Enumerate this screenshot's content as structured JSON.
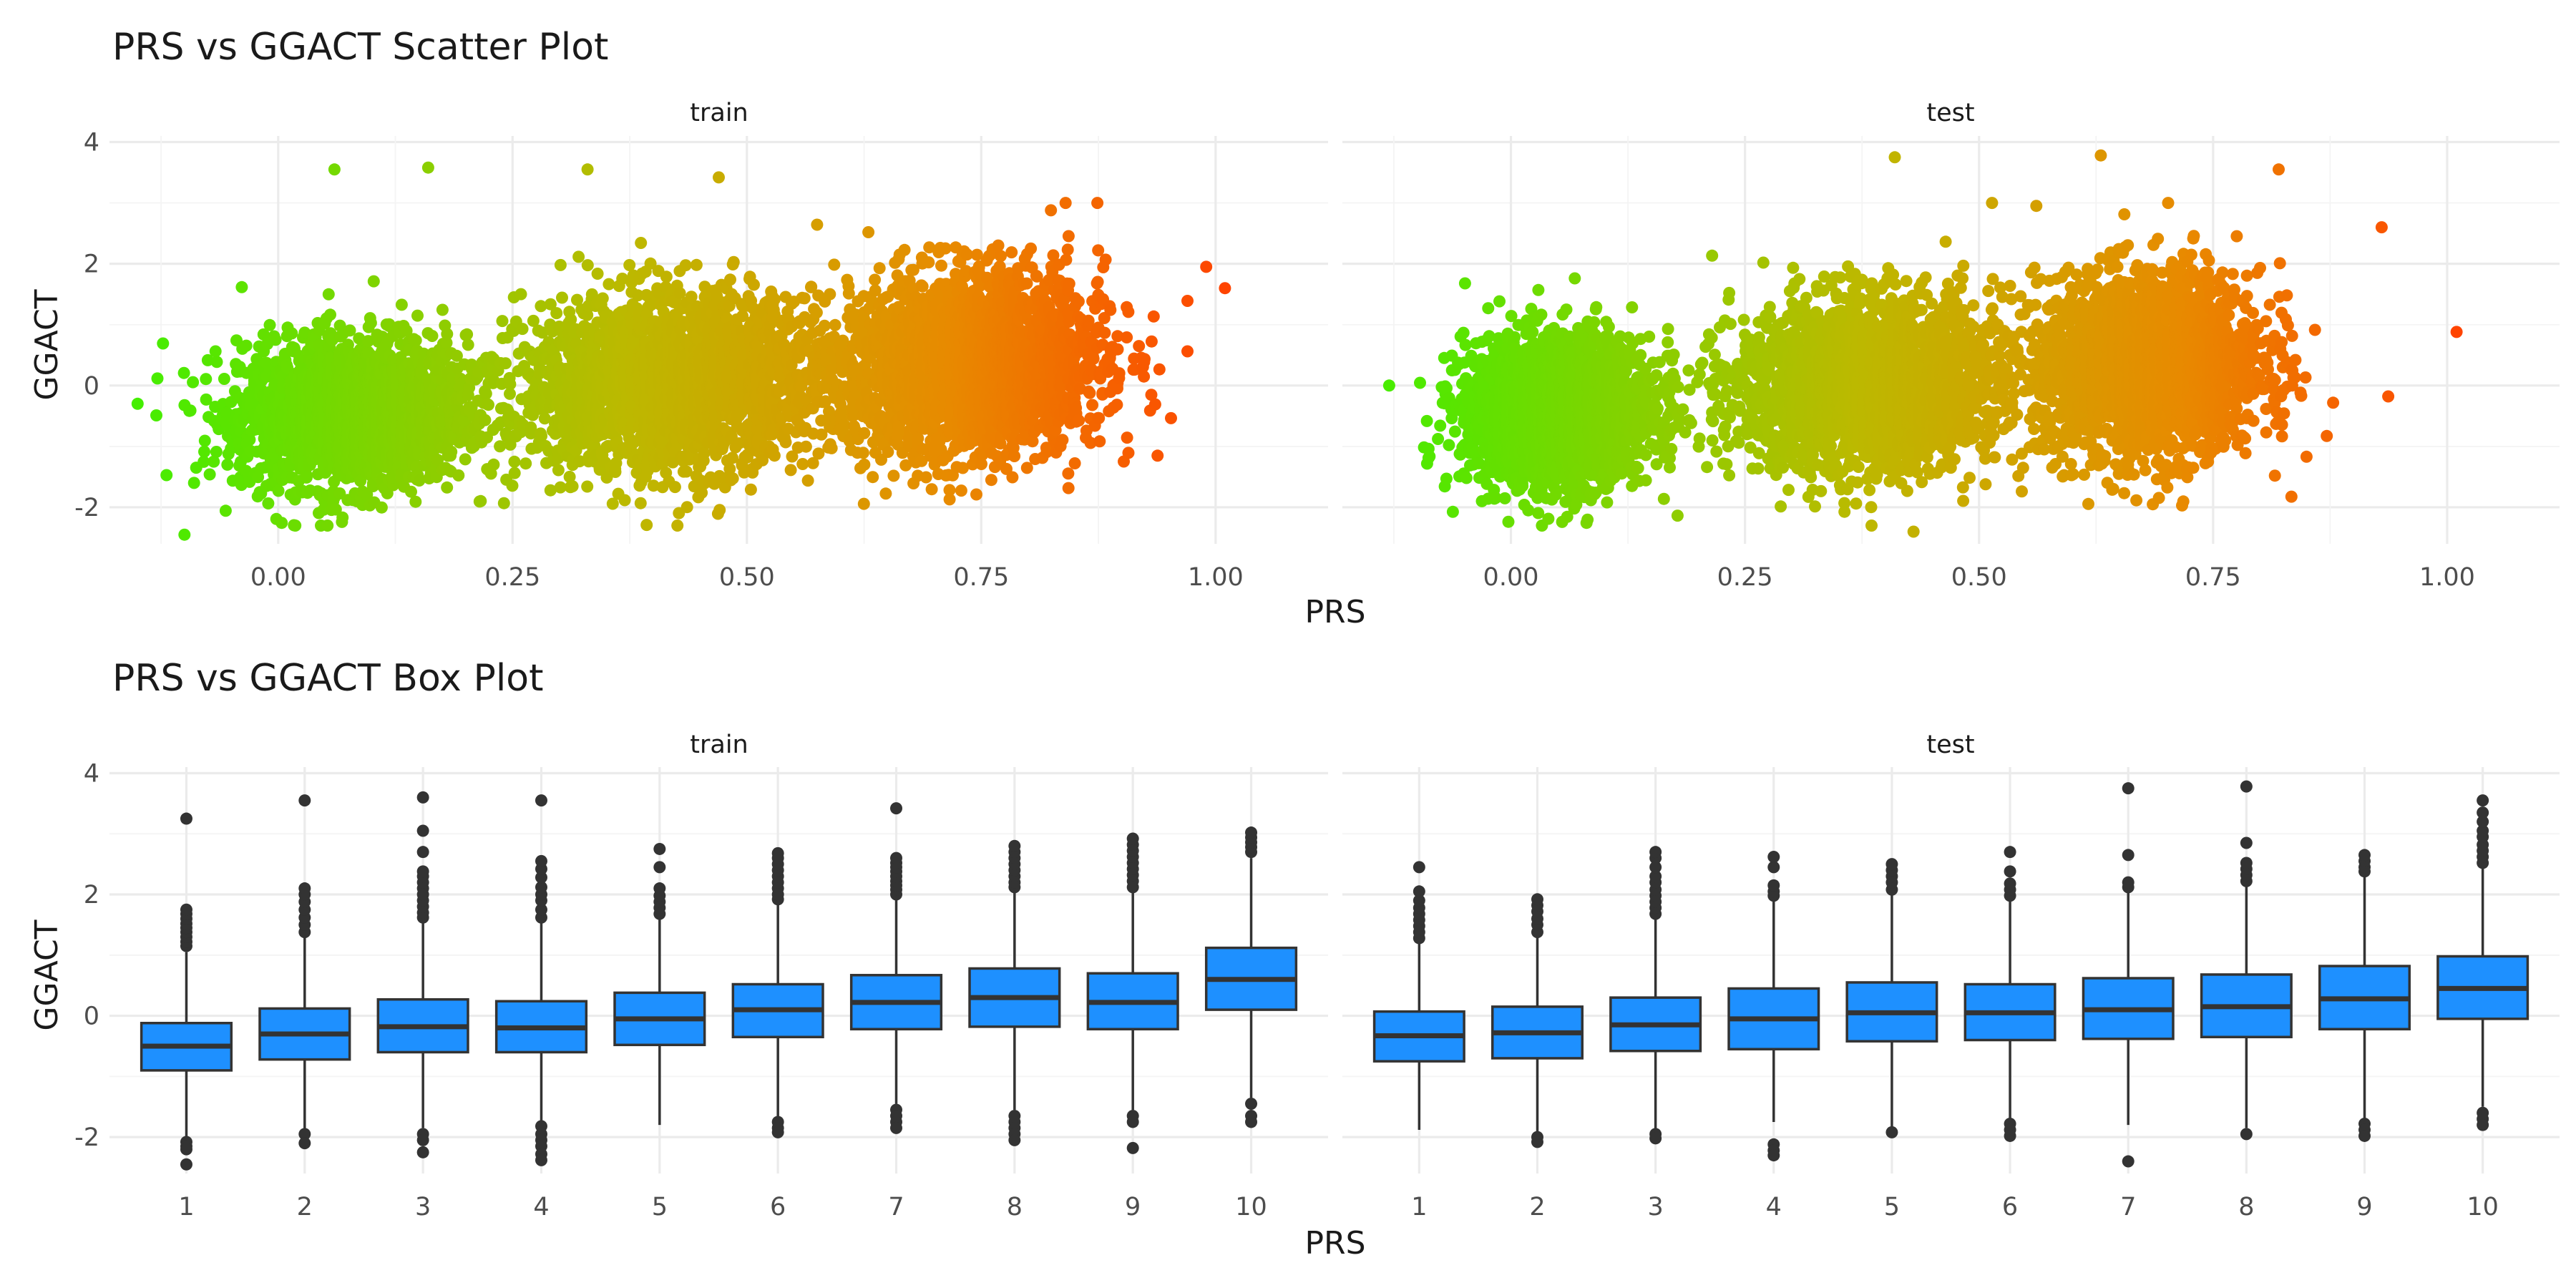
{
  "scatter_title": "PRS vs GGACT Scatter Plot",
  "box_title": "PRS vs GGACT Box Plot",
  "facets": [
    "train",
    "test"
  ],
  "xlabel": "PRS",
  "ylabel": "GGACT",
  "scatter_xticks": [
    "0.00",
    "0.25",
    "0.50",
    "0.75",
    "1.00"
  ],
  "scatter_yticks": [
    "-2",
    "0",
    "2",
    "4"
  ],
  "box_xticks": [
    "1",
    "2",
    "3",
    "4",
    "5",
    "6",
    "7",
    "8",
    "9",
    "10"
  ],
  "box_yticks": [
    "-2",
    "0",
    "2",
    "4"
  ],
  "colors": {
    "low": "#44ee00",
    "high": "#ff4400",
    "box_fill": "#1e90ff",
    "box_line": "#333333"
  },
  "chart_data": [
    {
      "type": "scatter",
      "title": "PRS vs GGACT Scatter Plot",
      "xlabel": "PRS",
      "ylabel": "GGACT",
      "xlim": [
        -0.18,
        1.12
      ],
      "ylim": [
        -2.6,
        4.1
      ],
      "color_by": "PRS",
      "facets": [
        {
          "name": "train",
          "clusters": [
            {
              "x_center": 0.08,
              "x_sd": 0.06,
              "y_mean": -0.45,
              "y_sd": 0.6
            },
            {
              "x_center": 0.42,
              "x_sd": 0.08,
              "y_mean": 0.05,
              "y_sd": 0.7
            },
            {
              "x_center": 0.74,
              "x_sd": 0.07,
              "y_mean": 0.35,
              "y_sd": 0.75
            }
          ],
          "x_range": [
            -0.15,
            1.01
          ],
          "y_range": [
            -2.45,
            3.6
          ],
          "notable_points": [
            [
              -0.15,
              -0.3
            ],
            [
              1.01,
              1.6
            ],
            [
              0.06,
              3.55
            ],
            [
              0.16,
              3.58
            ],
            [
              0.33,
              3.55
            ],
            [
              0.47,
              3.42
            ],
            [
              -0.1,
              -2.45
            ],
            [
              0.84,
              3.0
            ],
            [
              0.99,
              1.95
            ]
          ]
        },
        {
          "name": "test",
          "clusters": [
            {
              "x_center": 0.05,
              "x_sd": 0.05,
              "y_mean": -0.4,
              "y_sd": 0.6
            },
            {
              "x_center": 0.38,
              "x_sd": 0.07,
              "y_mean": 0.0,
              "y_sd": 0.7
            },
            {
              "x_center": 0.68,
              "x_sd": 0.06,
              "y_mean": 0.35,
              "y_sd": 0.75
            }
          ],
          "x_range": [
            -0.13,
            1.01
          ],
          "y_range": [
            -2.45,
            3.78
          ],
          "notable_points": [
            [
              -0.13,
              0.0
            ],
            [
              1.01,
              0.88
            ],
            [
              0.41,
              3.75
            ],
            [
              0.63,
              3.78
            ],
            [
              0.93,
              2.6
            ],
            [
              0.43,
              -2.4
            ],
            [
              0.82,
              3.55
            ]
          ]
        }
      ]
    },
    {
      "type": "box",
      "title": "PRS vs GGACT Box Plot",
      "xlabel": "PRS",
      "ylabel": "GGACT",
      "categories": [
        "1",
        "2",
        "3",
        "4",
        "5",
        "6",
        "7",
        "8",
        "9",
        "10"
      ],
      "ylim": [
        -2.6,
        4.1
      ],
      "facets": [
        {
          "name": "train",
          "boxes": [
            {
              "q1": -0.9,
              "median": -0.5,
              "q3": -0.12,
              "whisker_low": -2.05,
              "whisker_high": 1.05,
              "outliers": [
                1.15,
                1.22,
                1.3,
                1.38,
                1.45,
                1.52,
                1.6,
                1.68,
                1.75,
                -2.08,
                -2.15,
                -2.2,
                -2.45,
                3.25
              ]
            },
            {
              "q1": -0.72,
              "median": -0.3,
              "q3": 0.12,
              "whisker_low": -1.9,
              "whisker_high": 1.3,
              "outliers": [
                1.38,
                1.5,
                1.62,
                1.75,
                1.88,
                2.0,
                2.1,
                -1.95,
                -2.1,
                3.55
              ]
            },
            {
              "q1": -0.6,
              "median": -0.18,
              "q3": 0.27,
              "whisker_low": -1.85,
              "whisker_high": 1.55,
              "outliers": [
                1.62,
                1.7,
                1.8,
                1.9,
                2.0,
                2.1,
                2.2,
                2.3,
                2.38,
                2.7,
                3.05,
                3.6,
                -1.95,
                -2.05,
                -2.25
              ]
            },
            {
              "q1": -0.6,
              "median": -0.2,
              "q3": 0.24,
              "whisker_low": -1.75,
              "whisker_high": 1.55,
              "outliers": [
                1.62,
                1.75,
                1.9,
                2.0,
                2.12,
                2.28,
                2.42,
                2.55,
                3.55,
                -1.82,
                -1.95,
                -2.05,
                -2.15,
                -2.28,
                -2.38
              ]
            },
            {
              "q1": -0.48,
              "median": -0.05,
              "q3": 0.38,
              "whisker_low": -1.8,
              "whisker_high": 1.6,
              "outliers": [
                1.68,
                1.78,
                1.88,
                1.98,
                2.1,
                2.45,
                2.75
              ]
            },
            {
              "q1": -0.35,
              "median": 0.1,
              "q3": 0.52,
              "whisker_low": -1.7,
              "whisker_high": 1.85,
              "outliers": [
                1.92,
                2.0,
                2.1,
                2.2,
                2.3,
                2.4,
                2.5,
                2.6,
                2.68,
                -1.75,
                -1.85,
                -1.92
              ]
            },
            {
              "q1": -0.22,
              "median": 0.22,
              "q3": 0.67,
              "whisker_low": -1.45,
              "whisker_high": 1.92,
              "outliers": [
                2.0,
                2.08,
                2.15,
                2.22,
                2.3,
                2.38,
                2.45,
                2.52,
                2.6,
                3.42,
                -1.55,
                -1.65,
                -1.75,
                -1.85
              ]
            },
            {
              "q1": -0.18,
              "median": 0.3,
              "q3": 0.78,
              "whisker_low": -1.55,
              "whisker_high": 2.05,
              "outliers": [
                2.12,
                2.2,
                2.3,
                2.4,
                2.5,
                2.6,
                2.7,
                2.8,
                -1.65,
                -1.75,
                -1.85,
                -1.95,
                -2.05
              ]
            },
            {
              "q1": -0.22,
              "median": 0.22,
              "q3": 0.7,
              "whisker_low": -1.55,
              "whisker_high": 2.05,
              "outliers": [
                2.12,
                2.22,
                2.32,
                2.42,
                2.52,
                2.62,
                2.72,
                2.82,
                2.92,
                -1.65,
                -1.75,
                -2.18
              ]
            },
            {
              "q1": 0.1,
              "median": 0.6,
              "q3": 1.12,
              "whisker_low": -1.35,
              "whisker_high": 2.6,
              "outliers": [
                2.7,
                2.78,
                2.86,
                2.94,
                3.02,
                -1.45,
                -1.65,
                -1.75
              ]
            }
          ]
        },
        {
          "name": "test",
          "boxes": [
            {
              "q1": -0.75,
              "median": -0.33,
              "q3": 0.07,
              "whisker_low": -1.88,
              "whisker_high": 1.2,
              "outliers": [
                1.28,
                1.38,
                1.48,
                1.58,
                1.68,
                1.78,
                1.9,
                2.05,
                2.45
              ]
            },
            {
              "q1": -0.7,
              "median": -0.28,
              "q3": 0.15,
              "whisker_low": -1.95,
              "whisker_high": 1.3,
              "outliers": [
                1.38,
                1.5,
                1.6,
                1.72,
                1.82,
                1.92,
                -2.0,
                -2.08
              ]
            },
            {
              "q1": -0.58,
              "median": -0.15,
              "q3": 0.3,
              "whisker_low": -1.88,
              "whisker_high": 1.6,
              "outliers": [
                1.68,
                1.78,
                1.88,
                1.98,
                2.08,
                2.2,
                2.3,
                2.45,
                2.6,
                2.7,
                -1.95,
                -2.02
              ]
            },
            {
              "q1": -0.55,
              "median": -0.05,
              "q3": 0.45,
              "whisker_low": -1.75,
              "whisker_high": 1.9,
              "outliers": [
                1.98,
                2.05,
                2.15,
                2.45,
                2.62,
                -2.12,
                -2.22,
                -2.3
              ]
            },
            {
              "q1": -0.42,
              "median": 0.05,
              "q3": 0.55,
              "whisker_low": -1.85,
              "whisker_high": 2.0,
              "outliers": [
                2.08,
                2.2,
                2.3,
                2.4,
                2.5,
                -1.92
              ]
            },
            {
              "q1": -0.4,
              "median": 0.05,
              "q3": 0.52,
              "whisker_low": -1.7,
              "whisker_high": 1.9,
              "outliers": [
                1.98,
                2.08,
                2.18,
                2.38,
                2.7,
                -1.78,
                -1.88,
                -1.98
              ]
            },
            {
              "q1": -0.38,
              "median": 0.1,
              "q3": 0.62,
              "whisker_low": -1.8,
              "whisker_high": 2.05,
              "outliers": [
                2.12,
                2.2,
                2.65,
                3.75,
                -2.4
              ]
            },
            {
              "q1": -0.35,
              "median": 0.15,
              "q3": 0.68,
              "whisker_low": -1.85,
              "whisker_high": 2.15,
              "outliers": [
                2.22,
                2.32,
                2.42,
                2.52,
                2.85,
                3.78,
                -1.95
              ]
            },
            {
              "q1": -0.22,
              "median": 0.28,
              "q3": 0.82,
              "whisker_low": -1.7,
              "whisker_high": 2.3,
              "outliers": [
                2.38,
                2.45,
                2.55,
                2.65,
                -1.78,
                -1.88,
                -1.98
              ]
            },
            {
              "q1": -0.05,
              "median": 0.45,
              "q3": 0.98,
              "whisker_low": -1.5,
              "whisker_high": 2.45,
              "outliers": [
                2.52,
                2.62,
                2.72,
                2.82,
                2.95,
                3.05,
                3.2,
                3.35,
                3.55,
                -1.6,
                -1.7,
                -1.8
              ]
            }
          ]
        }
      ]
    }
  ]
}
